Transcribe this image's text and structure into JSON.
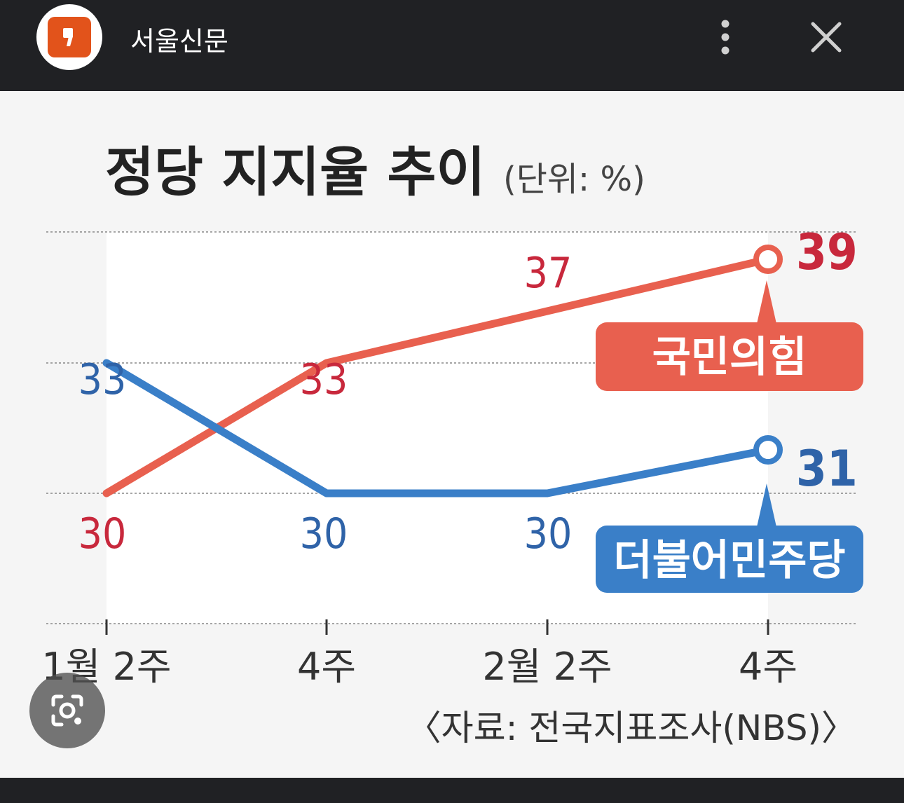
{
  "app": {
    "title": "서울신문"
  },
  "colors": {
    "ppp": "#e8604f",
    "ppp_text": "#c8283c",
    "dp": "#3a7fc8",
    "dp_text": "#2f63a8"
  },
  "chart_data": {
    "type": "line",
    "title": "정당 지지율 추이",
    "unit": "(단위: %)",
    "categories": [
      "1월 2주",
      "4주",
      "2월 2주",
      "4주"
    ],
    "series": [
      {
        "name": "국민의힘",
        "values": [
          30,
          33,
          37,
          39
        ]
      },
      {
        "name": "더불어민주당",
        "values": [
          33,
          30,
          30,
          31
        ]
      }
    ],
    "source": "〈자료: 전국지표조사(NBS)〉",
    "grid": true
  }
}
